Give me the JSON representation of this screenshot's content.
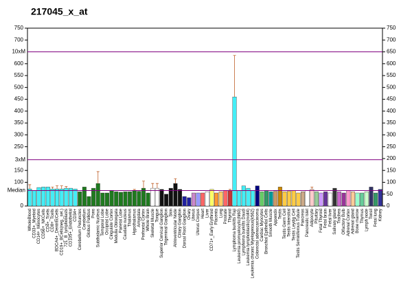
{
  "chart_data": {
    "type": "bar",
    "title": "217045_x_at",
    "categories": [
      "WholeBlood",
      "CD33+_Myeloid",
      "CD14+_Monocytes",
      "CD56+_NKCells",
      "CD4+_Tcells",
      "CD8+_Tcells",
      "BDCA4+_DentriticCells",
      "CD19+_BCells(neg._sel.)",
      "721_B_lymphoblasts",
      "CD105+_Endothelial",
      "CD34+",
      "Cerebellum Peduncles",
      "Cerebellum",
      "Globus Pallidus",
      "Pons",
      "Subthalamic Nucleus",
      "Temporal Lobe",
      "Occipital Lobe",
      "Cingulate Cortex",
      "Medulla Oblongata",
      "Parietal Lobe",
      "Caudate nucleus",
      "Thalamus",
      "Hypothalamus",
      "Amygdala",
      "Prefrontal Cortex",
      "Whole Brain",
      "Skeletal Muscle",
      "Tongue",
      "Superior Cervical Ganglion",
      "Trigeminal Ganglion",
      "Skin",
      "Atrioventricular Node",
      "Ciliary Ganglion",
      "Dorsal Root Ganglion",
      "Ovary",
      "Uterus",
      "Uterus Corpus",
      "Heart",
      "Liver",
      "CD71+_Early Erythroid",
      "Placenta",
      "Lung",
      "Prostate",
      "Thyroid",
      "Lymphoma burkitts Raji",
      "Leukemia promyelocytic(hl60)",
      "Lymphoma burkitts Daudi",
      "Leukemia lymphoblastic(molt4)",
      "Leukemia chronic Myelogenous(k562)",
      "Colorectal adenocarcinoma",
      "Cardiac Myocytes",
      "Bronchial Epithelial Cells",
      "Smooth Muscle",
      "Appendix",
      "Testis",
      "Testis Germ Cell",
      "Testis Intersitial",
      "Testis Leydig Cell",
      "Testis Seminiferous Tubule",
      "Pancreas",
      "Pancreatic Islet",
      "Adipocyte",
      "Pituitary",
      "Fetal Thyroid",
      "Fetal brain",
      "Fetal liver",
      "Salivary gland",
      "Trachea",
      "Olfactory Bulb",
      "Adrenal Cortex",
      "Adrenal gland",
      "Bone marrow",
      "Thymus",
      "Lymph node",
      "Tonsil",
      "Fetal lung",
      "Kidney"
    ],
    "values": [
      72,
      65,
      78,
      80,
      80,
      72,
      72,
      72,
      75,
      75,
      72,
      60,
      80,
      40,
      75,
      95,
      55,
      55,
      65,
      60,
      58,
      60,
      60,
      65,
      62,
      75,
      55,
      75,
      75,
      70,
      50,
      75,
      95,
      70,
      40,
      35,
      55,
      55,
      55,
      60,
      70,
      55,
      60,
      65,
      65,
      460,
      65,
      85,
      75,
      65,
      85,
      60,
      65,
      60,
      62,
      80,
      60,
      62,
      65,
      55,
      60,
      65,
      70,
      60,
      55,
      60,
      55,
      75,
      60,
      55,
      65,
      60,
      55,
      55,
      60,
      80,
      55,
      70
    ],
    "errors": [
      18,
      null,
      null,
      null,
      null,
      8,
      13,
      13,
      7,
      null,
      null,
      null,
      null,
      null,
      null,
      50,
      null,
      null,
      null,
      null,
      null,
      null,
      null,
      5,
      null,
      30,
      null,
      20,
      20,
      null,
      null,
      null,
      20,
      null,
      null,
      null,
      null,
      null,
      null,
      null,
      null,
      null,
      null,
      null,
      5,
      175,
      null,
      null,
      null,
      null,
      null,
      null,
      null,
      null,
      null,
      null,
      null,
      null,
      null,
      null,
      null,
      null,
      10,
      null,
      null,
      null,
      null,
      null,
      null,
      null,
      null,
      null,
      null,
      null,
      null,
      null,
      null,
      null
    ],
    "colors": [
      "#44eef6",
      "#44eef6",
      "#44eef6",
      "#44eef6",
      "#44eef6",
      "#44eef6",
      "#44eef6",
      "#44eef6",
      "#44eef6",
      "#44eef6",
      "#44eef6",
      "#1f7a1f",
      "#1f7a1f",
      "#1f7a1f",
      "#1f7a1f",
      "#1f7a1f",
      "#1f7a1f",
      "#1f7a1f",
      "#1f7a1f",
      "#1f7a1f",
      "#1f7a1f",
      "#1f7a1f",
      "#1f7a1f",
      "#1f7a1f",
      "#1f7a1f",
      "#1f7a1f",
      "#1f7a1f",
      "#ffffff",
      "#ffffff",
      "#111111",
      "#111111",
      "#111111",
      "#111111",
      "#111111",
      "#2020a0",
      "#2020a0",
      "#cc88cc",
      "#9999ff",
      "#ff6666",
      "#ffffff",
      "#ffff66",
      "#ff9933",
      "#ffcc66",
      "#ff6666",
      "#cc3333",
      "#44eef6",
      "#44eef6",
      "#44eef6",
      "#44eef6",
      "#44eef6",
      "#000080",
      "#66cc66",
      "#339966",
      "#009999",
      "#cc9966",
      "#cc8800",
      "#ffcc44",
      "#ffcc44",
      "#ffcc44",
      "#ffcc44",
      "#ccaa88",
      "#ffffff",
      "#ffcccc",
      "#99cc99",
      "#cc99ff",
      "#663399",
      "#ffffff",
      "#333333",
      "#cc66cc",
      "#993399",
      "#ff99cc",
      "#ffcc99",
      "#99ffcc",
      "#66cc99",
      "#ccffcc",
      "#333366",
      "#339966",
      "#333399"
    ],
    "ylim": [
      0,
      750
    ],
    "yticks": [
      0,
      100,
      150,
      250,
      300,
      350,
      400,
      450,
      500,
      550,
      600,
      700,
      750
    ],
    "y2lim": [
      0,
      750
    ],
    "y2ticks": [
      0,
      50,
      100,
      150,
      200,
      250,
      300,
      350,
      400,
      450,
      500,
      550,
      600,
      650,
      700,
      750
    ],
    "ref_lines": [
      {
        "value": 650,
        "label": "10xM"
      },
      {
        "value": 195,
        "label": "3xM"
      },
      {
        "value": 65,
        "label": "Median"
      }
    ],
    "ref_color": "#800080",
    "error_color": "#c0602a"
  }
}
